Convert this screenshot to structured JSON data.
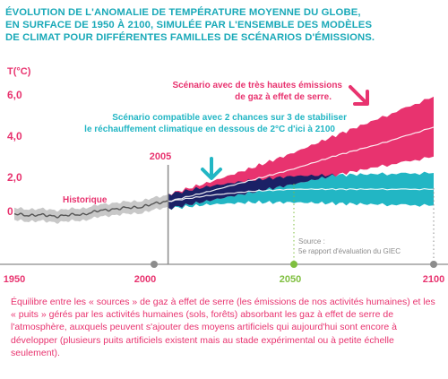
{
  "title_lines": [
    "ÉVOLUTION DE L'ANOMALIE DE TEMPÉRATURE MOYENNE DU GLOBE,",
    "EN SURFACE DE 1950 À 2100, SIMULÉE PAR L'ENSEMBLE DES MODÈLES",
    "DE CLIMAT POUR DIFFÉRENTES FAMILLES DE SCÉNARIOS D'ÉMISSIONS."
  ],
  "colors": {
    "title": "#1aa9b8",
    "historical": "#8c8c8c",
    "high_scenario": "#e8336f",
    "low_scenario": "#22b6c4",
    "overlap": "#1b2166",
    "markers": "#7fbf3f",
    "footer": "#e8336f"
  },
  "chart_data": {
    "type": "area",
    "ylabel": "T(°C)",
    "yticks": [
      "6,0",
      "4,0",
      "2,0",
      "0"
    ],
    "ylim": [
      -1,
      6.5
    ],
    "xlim": [
      1950,
      2100
    ],
    "xticks": [
      "1950",
      "2000",
      "2050",
      "2100"
    ],
    "grid": false,
    "marker_2005": "2005",
    "historical_label": "Historique",
    "high_label_lines": [
      "Scénario avec de très hautes émissions",
      "de gaz à effet de serre."
    ],
    "low_label_lines": [
      "Scénario compatible avec 2 chances sur 3 de stabiliser",
      "le réchauffement climatique en dessous de 2°C d'ici à 2100"
    ],
    "source_lines": [
      "Source :",
      "5e rapport d'évaluation du GIEC"
    ],
    "series": [
      {
        "x": [
          1950,
          1955,
          1960,
          1965,
          1970,
          1975,
          1980,
          1985,
          1990,
          1995,
          2000,
          2005
        ],
        "mean": [
          -0.15,
          -0.25,
          -0.2,
          -0.3,
          -0.2,
          -0.2,
          0.0,
          0.05,
          0.15,
          0.15,
          0.35,
          0.45
        ],
        "low": [
          -0.45,
          -0.55,
          -0.5,
          -0.6,
          -0.5,
          -0.5,
          -0.3,
          -0.25,
          -0.15,
          -0.15,
          0.05,
          0.15
        ],
        "high": [
          0.15,
          0.05,
          0.1,
          0.0,
          0.1,
          0.1,
          0.3,
          0.35,
          0.45,
          0.45,
          0.65,
          0.75
        ]
      },
      {
        "name": "Scénario avec de très hautes émissions de gaz à effet de serre.",
        "x": [
          2005,
          2020,
          2035,
          2050,
          2065,
          2080,
          2100
        ],
        "mean": [
          0.45,
          0.95,
          1.5,
          2.05,
          2.7,
          3.25,
          4.1
        ],
        "low": [
          0.1,
          0.5,
          0.9,
          1.3,
          1.75,
          2.15,
          2.65
        ],
        "high": [
          0.8,
          1.4,
          2.1,
          2.85,
          3.7,
          4.5,
          5.6
        ]
      },
      {
        "name": "Scénario compatible avec 2 chances sur 3 de stabiliser le réchauffement climatique en dessous de 2°C d'ici à 2100",
        "x": [
          2005,
          2020,
          2035,
          2050,
          2065,
          2080,
          2100
        ],
        "mean": [
          0.45,
          0.75,
          0.95,
          1.05,
          1.05,
          1.05,
          1.05
        ],
        "low": [
          0.1,
          0.3,
          0.4,
          0.4,
          0.35,
          0.3,
          0.25
        ],
        "high": [
          0.8,
          1.2,
          1.5,
          1.7,
          1.75,
          1.8,
          1.85
        ]
      }
    ]
  },
  "footer_text": "Équilibre entre les « sources » de gaz à effet de serre (les émissions de nos activités humaines) et les « puits » gérés par les activités humaines (sols, forêts) absorbant les gaz à effet de serre de l'atmosphère, auxquels peuvent s'ajouter des moyens artificiels qui aujourd'hui sont encore à développer (plusieurs puits artificiels existent mais au stade expérimental ou à petite échelle seulement)."
}
